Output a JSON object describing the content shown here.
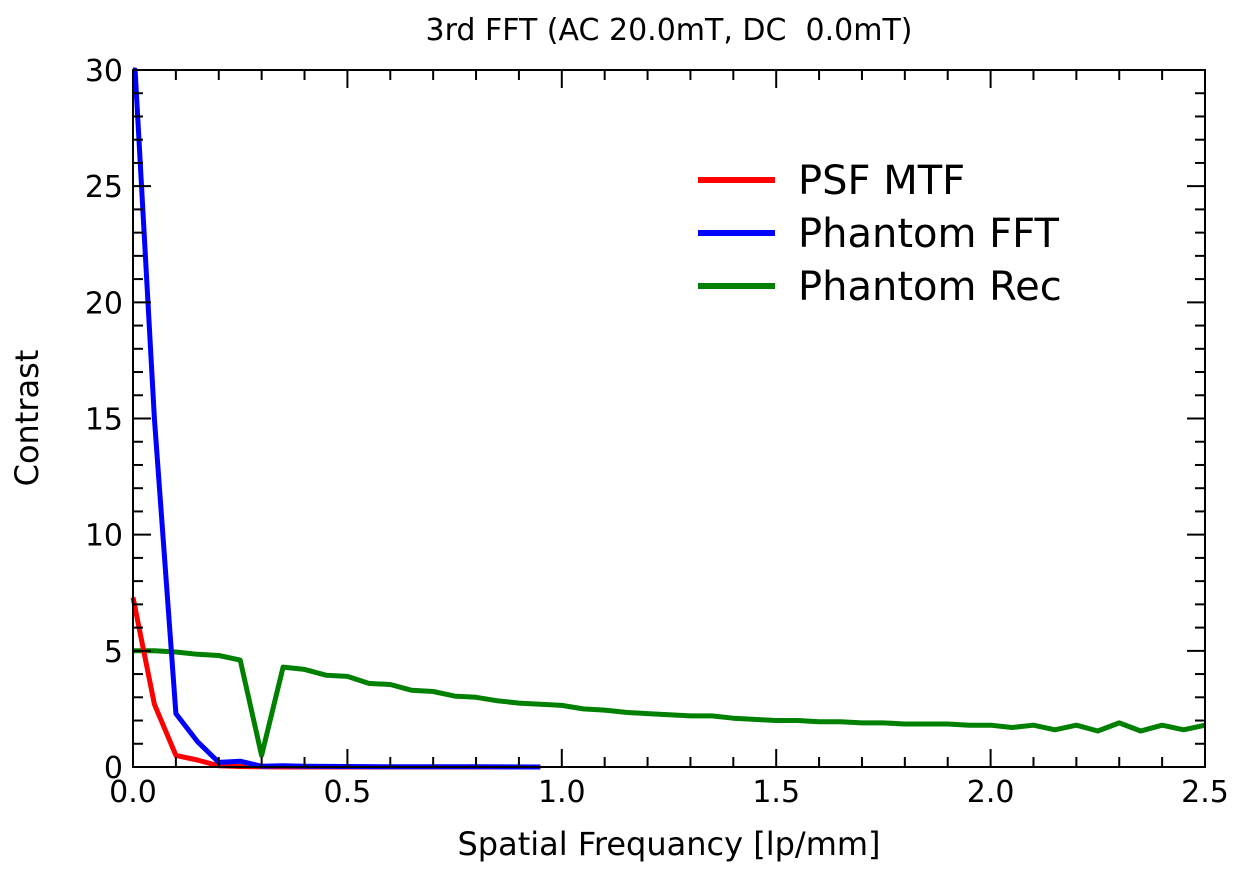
{
  "chart_data": {
    "type": "line",
    "title": "3rd FFT (AC 20.0mT, DC  0.0mT)",
    "xlabel": "Spatial Frequancy [lp/mm]",
    "ylabel": "Contrast",
    "xlim": [
      0,
      2.5
    ],
    "ylim": [
      0,
      30
    ],
    "xticks": [
      0.0,
      0.5,
      1.0,
      1.5,
      2.0,
      2.5
    ],
    "xtick_labels": [
      "0.0",
      "0.5",
      "1.0",
      "1.5",
      "2.0",
      "2.5"
    ],
    "yticks": [
      0,
      5,
      10,
      15,
      20,
      25,
      30
    ],
    "ytick_labels": [
      "0",
      "5",
      "10",
      "15",
      "20",
      "25",
      "30"
    ],
    "grid": false,
    "legend_position": "top-right",
    "series": [
      {
        "name": "PSF MTF",
        "color": "#ff0000",
        "x": [
          0.0,
          0.05,
          0.1,
          0.15,
          0.2,
          0.25,
          0.3,
          0.35,
          0.4,
          0.5,
          0.6,
          0.7,
          0.8,
          0.95
        ],
        "y": [
          7.3,
          2.7,
          0.5,
          0.3,
          0.05,
          0.02,
          0.01,
          0.0,
          0.0,
          0.0,
          0.0,
          0.0,
          0.0,
          0.0
        ]
      },
      {
        "name": "Phantom FFT",
        "color": "#0000ff",
        "x": [
          0.0,
          0.005,
          0.05,
          0.1,
          0.15,
          0.2,
          0.25,
          0.3,
          0.35,
          0.4,
          0.5,
          0.6,
          0.7,
          0.8,
          0.95
        ],
        "y": [
          30.0,
          30.0,
          15.0,
          2.3,
          1.1,
          0.2,
          0.25,
          0.03,
          0.05,
          0.03,
          0.02,
          0.01,
          0.01,
          0.01,
          0.0
        ],
        "clipped_above": 30
      },
      {
        "name": "Phantom Rec",
        "color": "#008000",
        "x": [
          0.0,
          0.05,
          0.1,
          0.15,
          0.2,
          0.25,
          0.3,
          0.35,
          0.4,
          0.45,
          0.5,
          0.55,
          0.6,
          0.65,
          0.7,
          0.75,
          0.8,
          0.85,
          0.9,
          0.95,
          1.0,
          1.05,
          1.1,
          1.15,
          1.2,
          1.25,
          1.3,
          1.35,
          1.4,
          1.45,
          1.5,
          1.55,
          1.6,
          1.65,
          1.7,
          1.75,
          1.8,
          1.85,
          1.9,
          1.95,
          2.0,
          2.05,
          2.1,
          2.15,
          2.2,
          2.25,
          2.3,
          2.35,
          2.4,
          2.45,
          2.5
        ],
        "y": [
          5.0,
          5.0,
          4.95,
          4.85,
          4.8,
          4.6,
          0.5,
          4.3,
          4.2,
          3.95,
          3.9,
          3.6,
          3.55,
          3.3,
          3.25,
          3.05,
          3.0,
          2.85,
          2.75,
          2.7,
          2.65,
          2.5,
          2.45,
          2.35,
          2.3,
          2.25,
          2.2,
          2.2,
          2.1,
          2.05,
          2.0,
          2.0,
          1.95,
          1.95,
          1.9,
          1.9,
          1.85,
          1.85,
          1.85,
          1.8,
          1.8,
          1.7,
          1.8,
          1.6,
          1.8,
          1.55,
          1.9,
          1.55,
          1.8,
          1.6,
          1.8
        ]
      }
    ]
  }
}
